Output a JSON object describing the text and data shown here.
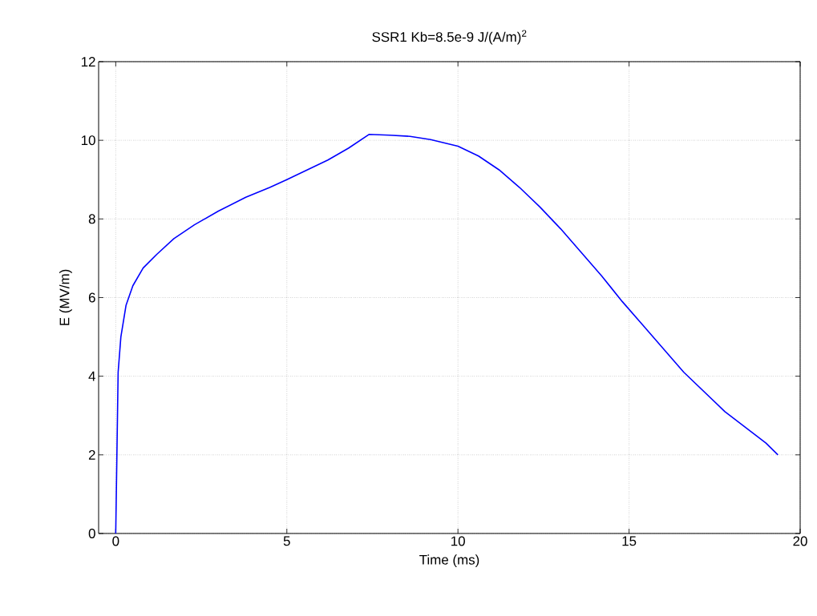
{
  "chart_data": {
    "type": "line",
    "title": "SSR1 Kb=8.5e-9 J/(A/m)$^{2}$",
    "xlabel": "Time (ms)",
    "ylabel": "E (MV/m)",
    "x": [
      0,
      0.07,
      0.15,
      0.3,
      0.5,
      0.8,
      1.2,
      1.7,
      2.3,
      3,
      3.8,
      4.5,
      5,
      5.6,
      6.2,
      6.8,
      7.4,
      8,
      8.6,
      9.2,
      10,
      10.6,
      11.2,
      11.8,
      12.4,
      13,
      13.6,
      14.2,
      14.8,
      15.4,
      16,
      16.6,
      17.2,
      17.8,
      18.4,
      19,
      19.35
    ],
    "series": [
      {
        "color": "#0000ff",
        "values": [
          0,
          4.1,
          5.0,
          5.8,
          6.3,
          6.75,
          7.1,
          7.5,
          7.85,
          8.2,
          8.55,
          8.8,
          9.0,
          9.25,
          9.5,
          9.8,
          10.15,
          10.13,
          10.1,
          10.02,
          9.85,
          9.6,
          9.25,
          8.8,
          8.3,
          7.75,
          7.15,
          6.55,
          5.9,
          5.3,
          4.7,
          4.1,
          3.6,
          3.1,
          2.7,
          2.3,
          2.0
        ]
      }
    ],
    "xlim": [
      -0.5,
      20
    ],
    "ylim": [
      0,
      12
    ],
    "xticks": [
      0,
      5,
      10,
      15,
      20
    ],
    "yticks": [
      0,
      2,
      4,
      6,
      8,
      10,
      12
    ],
    "grid": true,
    "marker": "none",
    "line_style": "solid"
  }
}
